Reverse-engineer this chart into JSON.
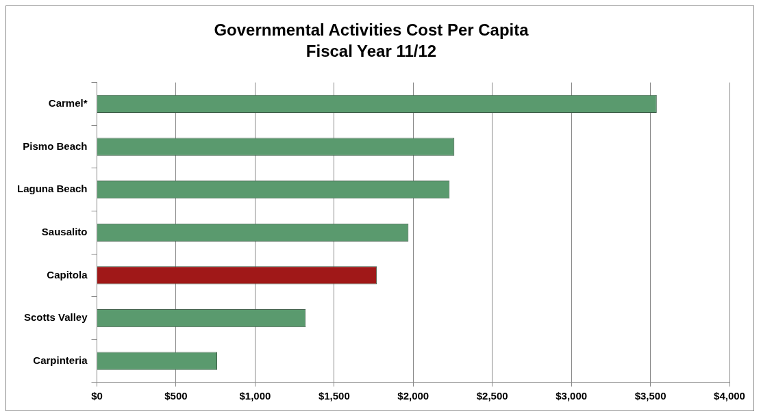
{
  "chart_data": {
    "type": "bar",
    "orientation": "horizontal",
    "title": "Governmental Activities Cost Per Capita",
    "subtitle": "Fiscal Year 11/12",
    "categories": [
      "Carmel*",
      "Pismo Beach",
      "Laguna Beach",
      "Sausalito",
      "Capitola",
      "Scotts Valley",
      "Carpinteria"
    ],
    "values": [
      3540,
      2260,
      2230,
      1970,
      1770,
      1320,
      760
    ],
    "colors": [
      "#5a9a6e",
      "#5a9a6e",
      "#5a9a6e",
      "#5a9a6e",
      "#a01818",
      "#5a9a6e",
      "#5a9a6e"
    ],
    "xlim": [
      0,
      4000
    ],
    "xticks": [
      {
        "value": 0,
        "label": "$0"
      },
      {
        "value": 500,
        "label": "$500"
      },
      {
        "value": 1000,
        "label": "$1,000"
      },
      {
        "value": 1500,
        "label": "$1,500"
      },
      {
        "value": 2000,
        "label": "$2,000"
      },
      {
        "value": 2500,
        "label": "$2,500"
      },
      {
        "value": 3000,
        "label": "$3,000"
      },
      {
        "value": 3500,
        "label": "$3,500"
      },
      {
        "value": 4000,
        "label": "$4,000"
      }
    ],
    "grid": "x",
    "legend": false
  }
}
